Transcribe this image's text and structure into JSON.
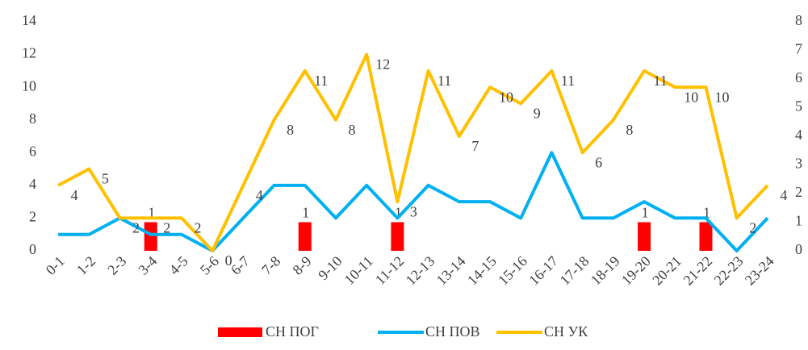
{
  "chart_data": {
    "type": "combo",
    "categories": [
      "0-1",
      "1-2",
      "2-3",
      "3-4",
      "4-5",
      "5-6",
      "6-7",
      "7-8",
      "8-9",
      "9-10",
      "10-11",
      "11-12",
      "12-13",
      "13-14",
      "14-15",
      "15-16",
      "16-17",
      "17-18",
      "18-19",
      "19-20",
      "20-21",
      "21-22",
      "22-23",
      "23-24"
    ],
    "series": [
      {
        "name": "СН ПОГ",
        "color": "#ff0000",
        "kind": "bar",
        "axis": "y2",
        "values": [
          0,
          0,
          0,
          1,
          0,
          0,
          0,
          0,
          1,
          0,
          0,
          1,
          0,
          0,
          0,
          0,
          0,
          0,
          0,
          1,
          0,
          1,
          0,
          0
        ]
      },
      {
        "name": "СН ПОВ",
        "color": "#00b0f0",
        "kind": "line",
        "values": [
          1,
          1,
          2,
          1,
          1,
          0,
          2,
          4,
          4,
          2,
          4,
          2,
          4,
          3,
          3,
          2,
          6,
          2,
          2,
          3,
          2,
          2,
          0,
          2
        ]
      },
      {
        "name": "СН УК",
        "color": "#ffc000",
        "kind": "line",
        "values": [
          4,
          5,
          2,
          2,
          2,
          0,
          4,
          8,
          11,
          8,
          12,
          3,
          11,
          7,
          10,
          9,
          11,
          6,
          8,
          11,
          10,
          10,
          2,
          4
        ]
      }
    ],
    "ylim": [
      0,
      14
    ],
    "yticks": [
      0,
      2,
      4,
      6,
      8,
      10,
      12,
      14
    ],
    "y2lim": [
      0,
      8
    ],
    "y2ticks": [
      0,
      1,
      2,
      3,
      4,
      5,
      6,
      7,
      8
    ],
    "legend": "bottom"
  }
}
